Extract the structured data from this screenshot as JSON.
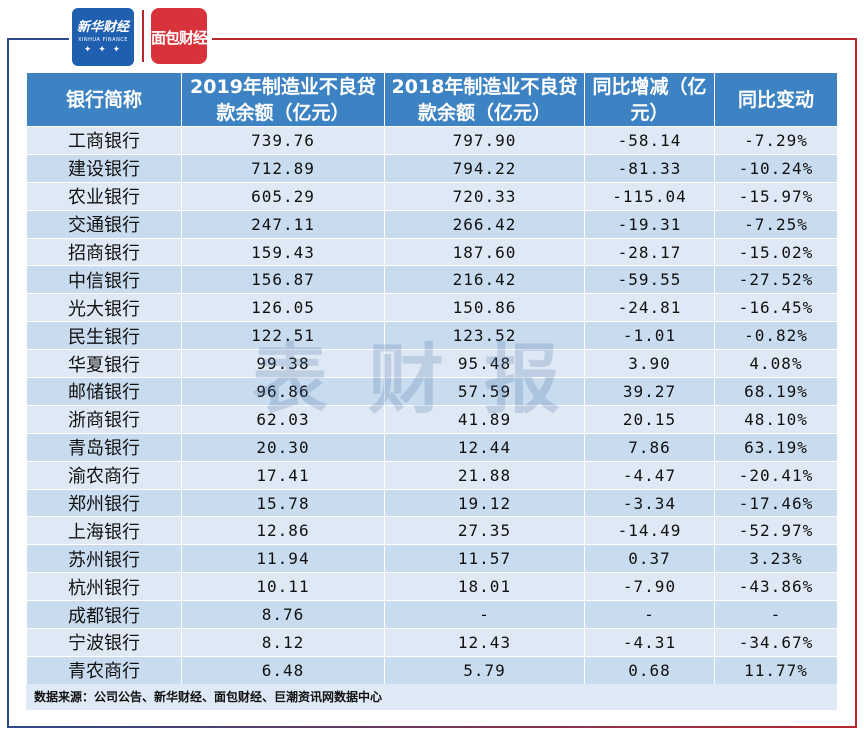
{
  "logos": {
    "xinhua_title": "新华财经",
    "xinhua_sub": "XINHUA FINANCE",
    "mianbao_title": "面包财经"
  },
  "watermark": "表财报",
  "table": {
    "headers": [
      "银行简称",
      "2019年制造业不良贷款余额（亿元）",
      "2018年制造业不良贷款余额（亿元）",
      "同比增减（亿元）",
      "同比变动"
    ],
    "rows": [
      [
        "工商银行",
        "739.76",
        "797.90",
        "-58.14",
        "-7.29%"
      ],
      [
        "建设银行",
        "712.89",
        "794.22",
        "-81.33",
        "-10.24%"
      ],
      [
        "农业银行",
        "605.29",
        "720.33",
        "-115.04",
        "-15.97%"
      ],
      [
        "交通银行",
        "247.11",
        "266.42",
        "-19.31",
        "-7.25%"
      ],
      [
        "招商银行",
        "159.43",
        "187.60",
        "-28.17",
        "-15.02%"
      ],
      [
        "中信银行",
        "156.87",
        "216.42",
        "-59.55",
        "-27.52%"
      ],
      [
        "光大银行",
        "126.05",
        "150.86",
        "-24.81",
        "-16.45%"
      ],
      [
        "民生银行",
        "122.51",
        "123.52",
        "-1.01",
        "-0.82%"
      ],
      [
        "华夏银行",
        "99.38",
        "95.48",
        "3.90",
        "4.08%"
      ],
      [
        "邮储银行",
        "96.86",
        "57.59",
        "39.27",
        "68.19%"
      ],
      [
        "浙商银行",
        "62.03",
        "41.89",
        "20.15",
        "48.10%"
      ],
      [
        "青岛银行",
        "20.30",
        "12.44",
        "7.86",
        "63.19%"
      ],
      [
        "渝农商行",
        "17.41",
        "21.88",
        "-4.47",
        "-20.41%"
      ],
      [
        "郑州银行",
        "15.78",
        "19.12",
        "-3.34",
        "-17.46%"
      ],
      [
        "上海银行",
        "12.86",
        "27.35",
        "-14.49",
        "-52.97%"
      ],
      [
        "苏州银行",
        "11.94",
        "11.57",
        "0.37",
        "3.23%"
      ],
      [
        "杭州银行",
        "10.11",
        "18.01",
        "-7.90",
        "-43.86%"
      ],
      [
        "成都银行",
        "8.76",
        "-",
        "-",
        "-"
      ],
      [
        "宁波银行",
        "8.12",
        "12.43",
        "-4.31",
        "-34.67%"
      ],
      [
        "青农商行",
        "6.48",
        "5.79",
        "0.68",
        "11.77%"
      ]
    ]
  },
  "source": "数据来源：公司公告、新华财经、面包财经、巨潮资讯网数据中心",
  "colors": {
    "header_bg": "#3d83c4",
    "row_light": "#dfe9f5",
    "row_dark": "#c9dcef",
    "frame_blue": "#2c4a88",
    "frame_red": "#b8262c"
  }
}
